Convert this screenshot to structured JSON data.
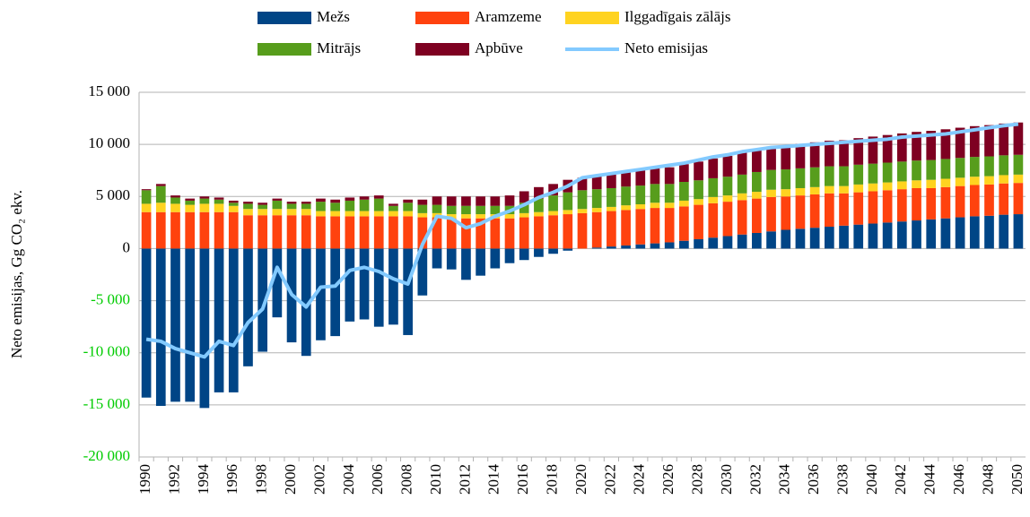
{
  "chart_data": {
    "type": "bar",
    "stacked": true,
    "y_label": "Neto emisijas, Gg CO₂ ekv.",
    "categories": [
      "1990",
      null,
      "1992",
      null,
      "1994",
      null,
      "1996",
      null,
      "1998",
      null,
      "2000",
      null,
      "2002",
      null,
      "2004",
      null,
      "2006",
      null,
      "2008",
      null,
      "2010",
      null,
      "2012",
      null,
      "2014",
      null,
      "2016",
      null,
      "2018",
      null,
      "2020",
      null,
      "2022",
      null,
      "2024",
      null,
      "2026",
      null,
      "2028",
      null,
      "2030",
      null,
      "2032",
      null,
      "2034",
      null,
      "2036",
      null,
      "2038",
      null,
      "2040",
      null,
      "2042",
      null,
      "2044",
      null,
      "2046",
      null,
      "2048",
      null,
      "2050"
    ],
    "ylim": [
      -20000,
      15000
    ],
    "yticks": [
      {
        "value": -20000,
        "label": "-20 000"
      },
      {
        "value": -15000,
        "label": "-15 000"
      },
      {
        "value": -10000,
        "label": "-10 000"
      },
      {
        "value": -5000,
        "label": "-5 000"
      },
      0,
      {
        "value": 5000,
        "label": "5 000"
      },
      {
        "value": 10000,
        "label": "10 000"
      },
      {
        "value": 15000,
        "label": "15 000"
      }
    ],
    "negative_tick_color": "#00cc00",
    "grid": true,
    "legend": "top",
    "series": [
      {
        "name": "Mežs",
        "color": "#004586",
        "values": [
          -14300,
          -15100,
          -14700,
          -14700,
          -15300,
          -13800,
          -13800,
          -11300,
          -9900,
          -6600,
          -9000,
          -10300,
          -8800,
          -8400,
          -7000,
          -6800,
          -7500,
          -7300,
          -8300,
          -4500,
          -1900,
          -2000,
          -3000,
          -2600,
          -1900,
          -1400,
          -1100,
          -800,
          -500,
          -200,
          0,
          100,
          200,
          300,
          400,
          500,
          600,
          750,
          900,
          1050,
          1200,
          1350,
          1500,
          1650,
          1800,
          1900,
          2000,
          2100,
          2200,
          2300,
          2400,
          2500,
          2600,
          2700,
          2800,
          2900,
          3000,
          3100,
          3150,
          3250,
          3300
        ]
      },
      {
        "name": "Aramzeme",
        "color": "#ff420e",
        "values": [
          3500,
          3500,
          3500,
          3500,
          3500,
          3500,
          3500,
          3200,
          3200,
          3200,
          3200,
          3200,
          3100,
          3100,
          3100,
          3100,
          3100,
          3100,
          3100,
          3000,
          3000,
          2900,
          2900,
          2900,
          2900,
          2900,
          3000,
          3100,
          3200,
          3300,
          3400,
          3400,
          3400,
          3400,
          3400,
          3400,
          3300,
          3300,
          3300,
          3300,
          3300,
          3300,
          3300,
          3300,
          3200,
          3200,
          3200,
          3200,
          3100,
          3100,
          3100,
          3100,
          3100,
          3100,
          3000,
          3000,
          3000,
          3000,
          3000,
          3000,
          3000
        ]
      },
      {
        "name": "Ilggadīgais zālājs",
        "color": "#ffd320",
        "values": [
          800,
          900,
          800,
          700,
          800,
          800,
          600,
          600,
          600,
          600,
          600,
          600,
          500,
          500,
          500,
          500,
          500,
          500,
          500,
          400,
          400,
          400,
          400,
          400,
          400,
          400,
          400,
          400,
          400,
          400,
          400,
          400,
          400,
          450,
          450,
          500,
          500,
          550,
          550,
          600,
          600,
          650,
          650,
          700,
          700,
          700,
          700,
          700,
          700,
          750,
          750,
          750,
          750,
          750,
          800,
          800,
          800,
          800,
          800,
          800,
          800
        ]
      },
      {
        "name": "Mitrājs",
        "color": "#579d1c",
        "values": [
          1300,
          1600,
          600,
          400,
          500,
          400,
          300,
          500,
          400,
          800,
          500,
          500,
          900,
          800,
          1000,
          1100,
          1200,
          500,
          800,
          800,
          800,
          800,
          800,
          800,
          800,
          800,
          1000,
          1300,
          1500,
          1700,
          1800,
          1800,
          1800,
          1800,
          1800,
          1800,
          1800,
          1800,
          1800,
          1800,
          1800,
          1800,
          1900,
          1900,
          1900,
          1900,
          1900,
          1900,
          1900,
          1900,
          1900,
          1900,
          1900,
          1900,
          1900,
          1900,
          1900,
          1900,
          1900,
          1900,
          1900
        ]
      },
      {
        "name": "Apbūve",
        "color": "#7e0021",
        "values": [
          100,
          200,
          200,
          200,
          200,
          200,
          200,
          200,
          200,
          200,
          200,
          200,
          300,
          300,
          300,
          300,
          300,
          200,
          300,
          500,
          800,
          900,
          900,
          900,
          900,
          1000,
          1100,
          1100,
          1100,
          1200,
          1200,
          1300,
          1400,
          1450,
          1500,
          1550,
          1600,
          1700,
          1800,
          1900,
          2000,
          2100,
          2200,
          2250,
          2300,
          2350,
          2400,
          2450,
          2500,
          2550,
          2600,
          2650,
          2700,
          2750,
          2800,
          2850,
          2900,
          2950,
          3000,
          3050,
          3100
        ]
      },
      {
        "name": "Neto emisijas",
        "type": "line",
        "color": "#83caff",
        "values": [
          -8700,
          -8900,
          -9600,
          -10000,
          -10400,
          -8900,
          -9300,
          -7100,
          -5800,
          -1800,
          -4400,
          -5600,
          -3700,
          -3600,
          -2100,
          -1800,
          -2200,
          -2900,
          -3400,
          400,
          3100,
          2900,
          2000,
          2400,
          3100,
          3600,
          4200,
          4900,
          5400,
          6000,
          6800,
          7000,
          7200,
          7400,
          7600,
          7800,
          8000,
          8200,
          8500,
          8800,
          9000,
          9300,
          9500,
          9700,
          9800,
          9900,
          10000,
          10100,
          10200,
          10300,
          10400,
          10500,
          10700,
          10800,
          10900,
          11000,
          11200,
          11400,
          11600,
          11800,
          11950
        ]
      }
    ]
  }
}
